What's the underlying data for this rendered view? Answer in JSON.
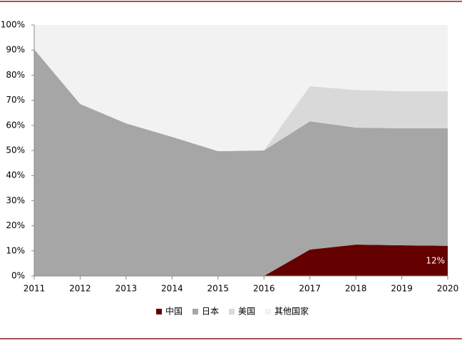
{
  "chart_data": {
    "type": "stacked-area",
    "x": [
      2011,
      2012,
      2013,
      2014,
      2015,
      2016,
      2017,
      2018,
      2019,
      2020
    ],
    "xlim": [
      2011,
      2020
    ],
    "xticks": [
      2011,
      2012,
      2013,
      2014,
      2015,
      2016,
      2017,
      2018,
      2019,
      2020
    ],
    "ylim": [
      0,
      100
    ],
    "yticks": [
      {
        "value": 0,
        "label": "0%"
      },
      {
        "value": 10,
        "label": "10%"
      },
      {
        "value": 20,
        "label": "20%"
      },
      {
        "value": 30,
        "label": "30%"
      },
      {
        "value": 40,
        "label": "40%"
      },
      {
        "value": 50,
        "label": "50%"
      },
      {
        "value": 60,
        "label": "60%"
      },
      {
        "value": 70,
        "label": "70%"
      },
      {
        "value": 80,
        "label": "80%"
      },
      {
        "value": 90,
        "label": "90%"
      },
      {
        "value": 100,
        "label": "100%"
      }
    ],
    "grid": false,
    "legend": "bottom",
    "series": [
      {
        "name": "中国",
        "color": "#640000",
        "values": [
          0,
          0,
          0,
          0,
          0,
          0,
          10.5,
          12.5,
          12.2,
          12
        ],
        "value_labels": [
          null,
          null,
          null,
          null,
          null,
          null,
          null,
          null,
          null,
          "12%"
        ]
      },
      {
        "name": "日本",
        "color": "#a6a6a6",
        "values": [
          90.3,
          68.5,
          60.8,
          55.4,
          49.7,
          50,
          51.1,
          46.6,
          46.6,
          46.8
        ]
      },
      {
        "name": "美国",
        "color": "#d9d9d9",
        "values": [
          0,
          0,
          0,
          0,
          0,
          0,
          14,
          15,
          14.8,
          14.8
        ]
      },
      {
        "name": "其他国家",
        "color": "#f2f2f2",
        "values": [
          9.7,
          31.5,
          39.2,
          44.6,
          50.3,
          50,
          24.4,
          25.9,
          26.4,
          26.4
        ]
      }
    ]
  }
}
